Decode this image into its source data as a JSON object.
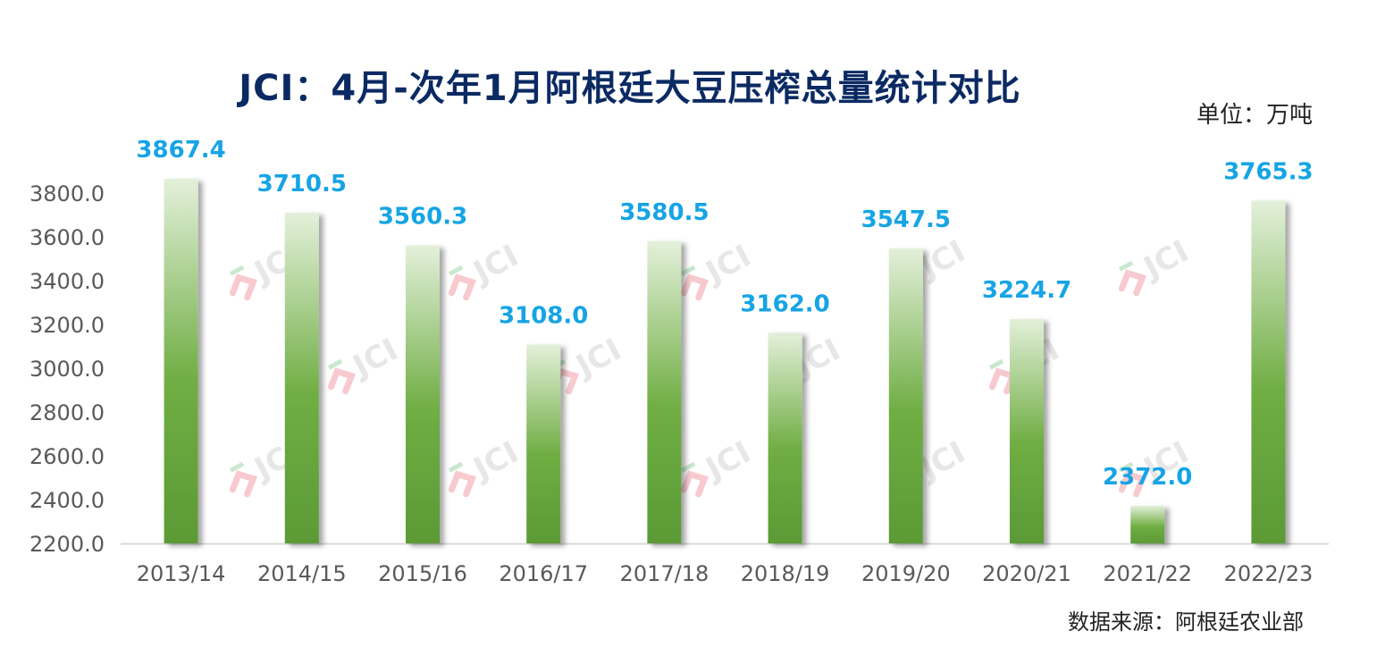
{
  "chart_data": {
    "type": "bar",
    "title": "JCI：4月-次年1月阿根廷大豆压榨总量统计对比",
    "unit_label": "单位：万吨",
    "source_label": "数据来源：阿根廷农业部",
    "watermark_text": "JCI",
    "categories": [
      "2013/14",
      "2014/15",
      "2015/16",
      "2016/17",
      "2017/18",
      "2018/19",
      "2019/20",
      "2020/21",
      "2021/22",
      "2022/23"
    ],
    "values": [
      3867.4,
      3710.5,
      3560.3,
      3108.0,
      3580.5,
      3162.0,
      3547.5,
      3224.7,
      2372.0,
      3765.3
    ],
    "data_labels": [
      "3867.4",
      "3710.5",
      "3560.3",
      "3108.0",
      "3580.5",
      "3162.0",
      "3547.5",
      "3224.7",
      "2372.0",
      "3765.3"
    ],
    "ylim": [
      2200,
      3800
    ],
    "yticks": [
      "2200.0",
      "2400.0",
      "2600.0",
      "2800.0",
      "3000.0",
      "3200.0",
      "3400.0",
      "3600.0",
      "3800.0"
    ],
    "ytick_values": [
      2200,
      2400,
      2600,
      2800,
      3000,
      3200,
      3400,
      3600,
      3800
    ],
    "xlabel": "",
    "ylabel": "",
    "grid": false,
    "legend": "none",
    "colors": {
      "title": "#0b2a63",
      "data_label": "#16a4e5",
      "bar_top": "#e3f0da",
      "bar_mid": "#70ae44",
      "bar_bottom": "#5b9a35",
      "axis_text": "#595959",
      "axis_line": "#d9d9d9"
    }
  }
}
